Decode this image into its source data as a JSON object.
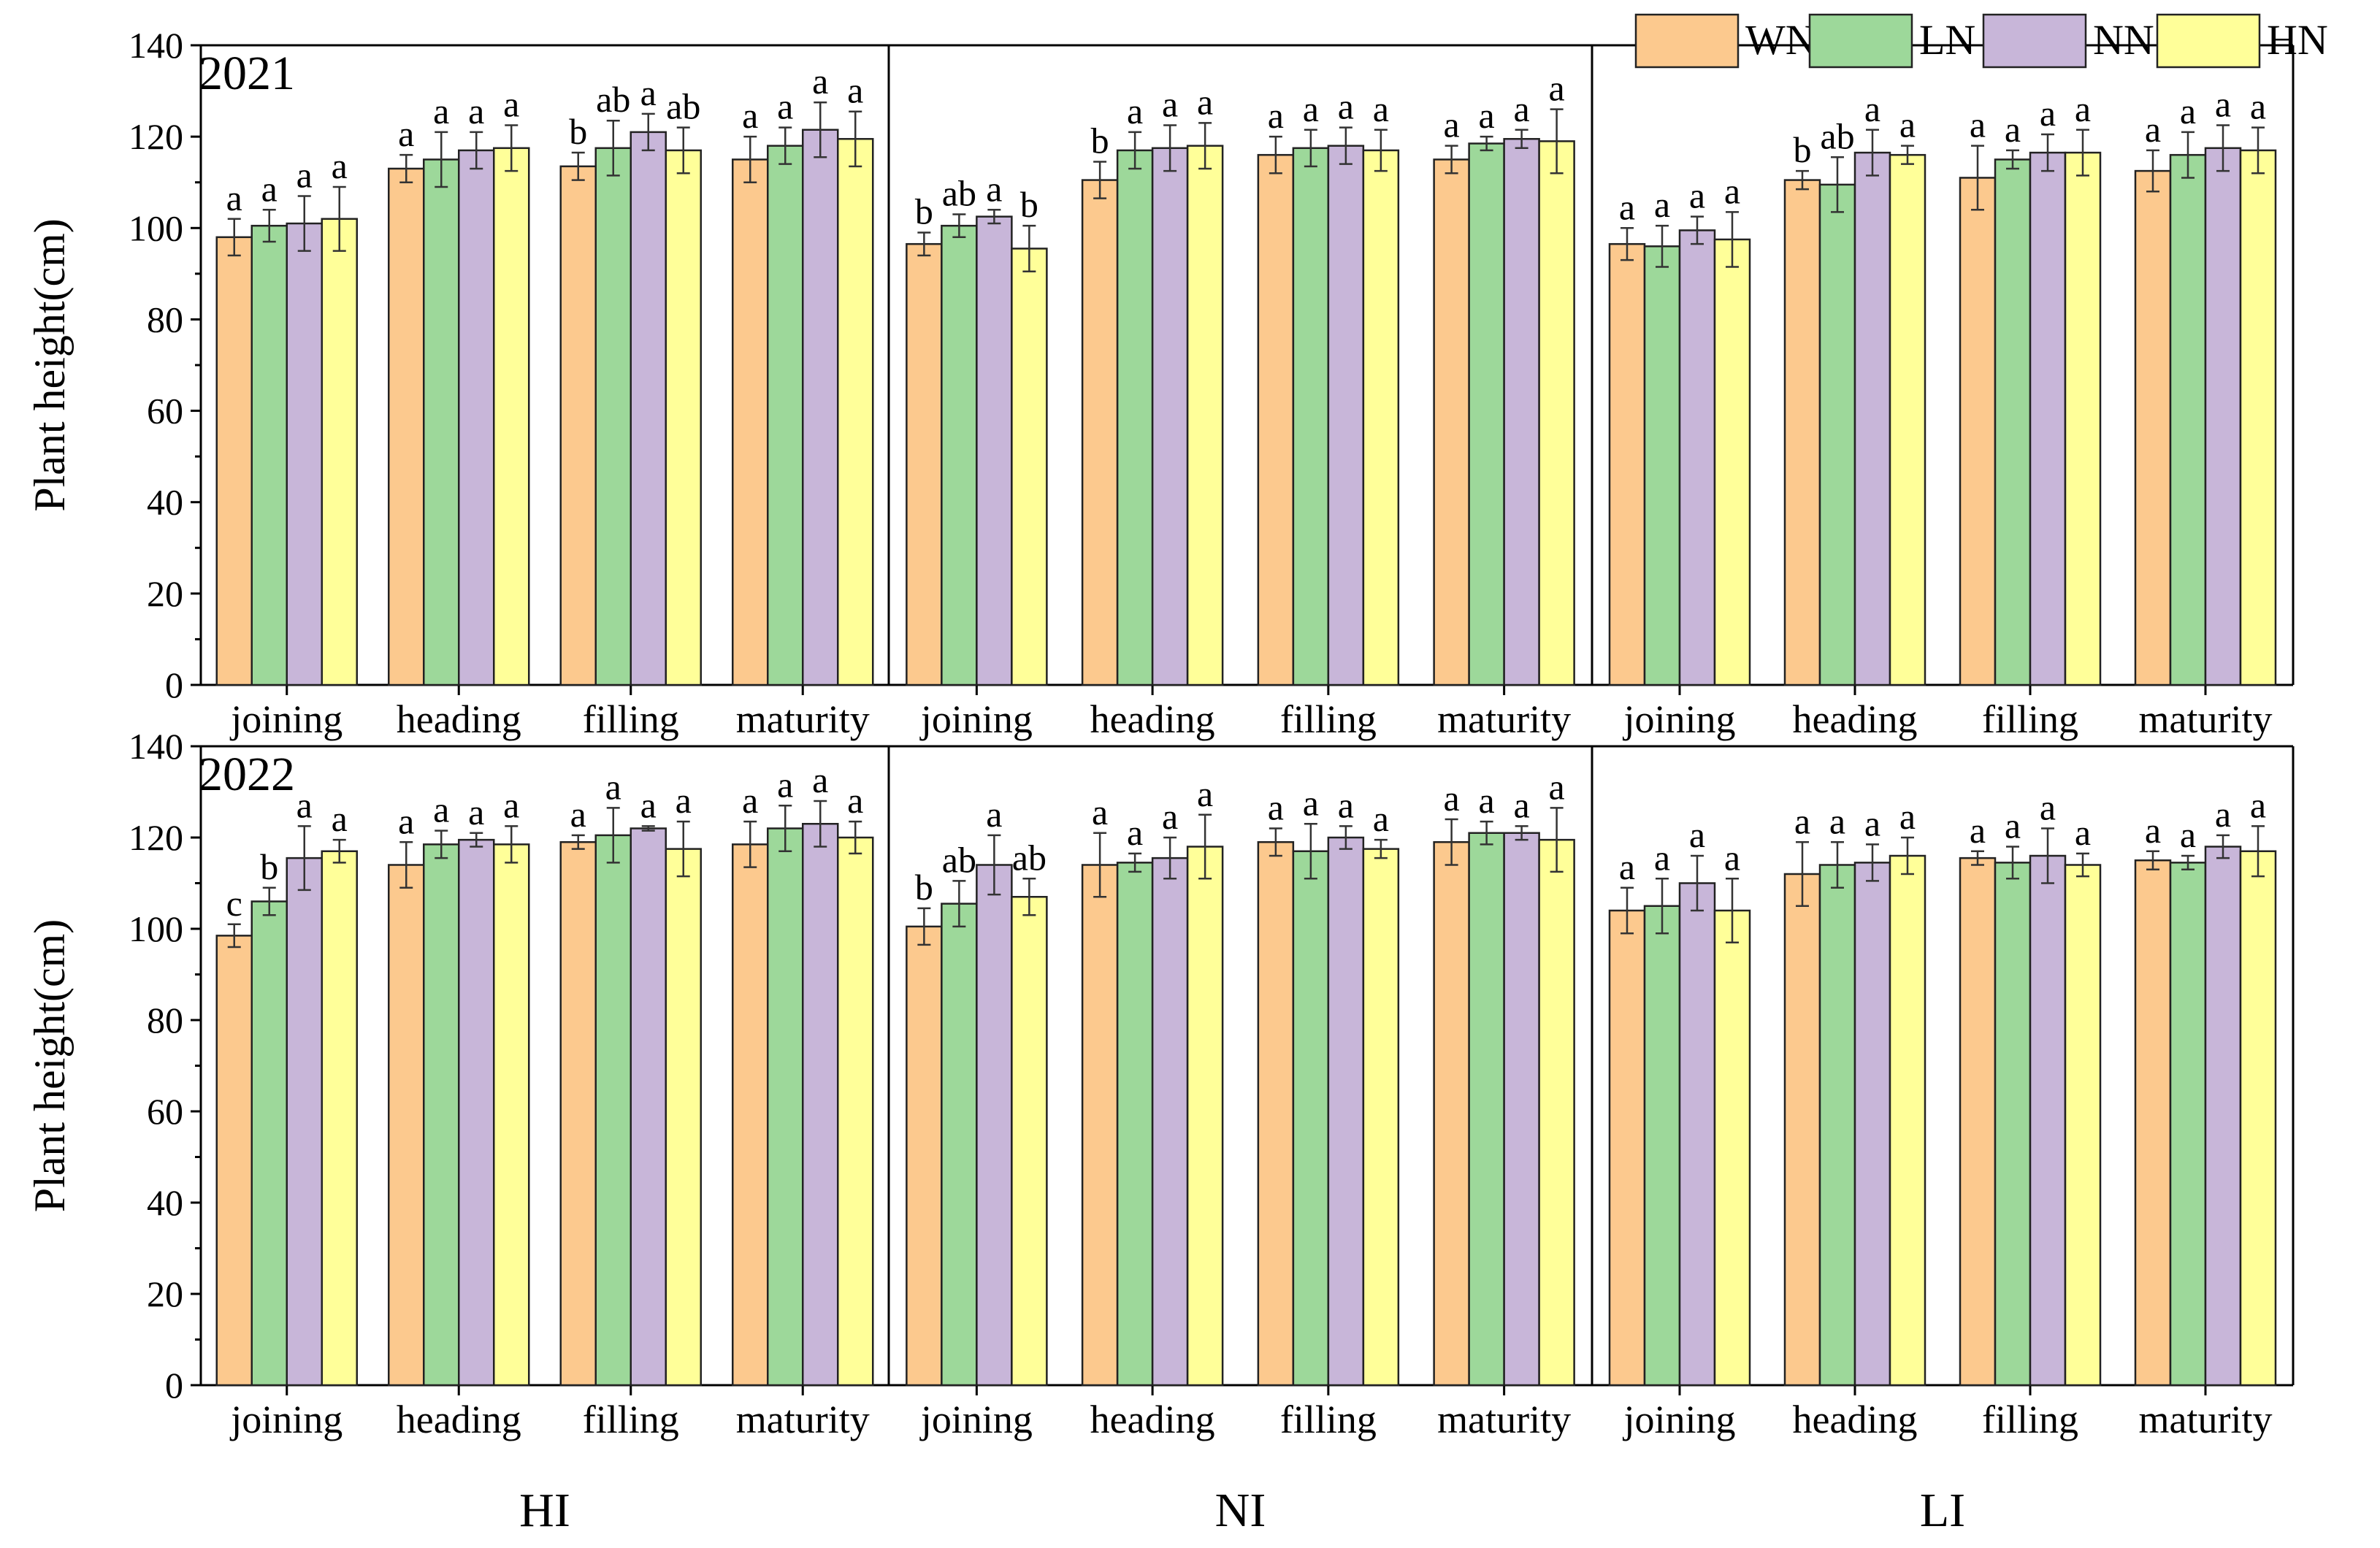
{
  "chart_data": {
    "type": "bar",
    "ylabel": "Plant height(cm)",
    "ylim": [
      0,
      140
    ],
    "yticks": [
      "0",
      "20",
      "40",
      "60",
      "80",
      "100",
      "120",
      "140"
    ],
    "stages": [
      "joining",
      "heading",
      "filling",
      "maturity"
    ],
    "treatments": [
      "HI",
      "NI",
      "LI"
    ],
    "years": [
      "2021",
      "2022"
    ],
    "legend": {
      "position": "top-right",
      "items": [
        {
          "name": "WN",
          "color": "#FCC98E"
        },
        {
          "name": "LN",
          "color": "#9DD89A"
        },
        {
          "name": "NN",
          "color": "#C8B6D9"
        },
        {
          "name": "HN",
          "color": "#FFFF99"
        }
      ]
    },
    "panels": [
      {
        "year": "2021",
        "treatment": "HI",
        "groups": [
          {
            "stage": "joining",
            "values": [
              98,
              100.5,
              101,
              102
            ],
            "errors": [
              4,
              3.5,
              6,
              7
            ],
            "letters": [
              "a",
              "a",
              "a",
              "a"
            ]
          },
          {
            "stage": "heading",
            "values": [
              113,
              115,
              117,
              117.5
            ],
            "errors": [
              3,
              6,
              4,
              5
            ],
            "letters": [
              "a",
              "a",
              "a",
              "a"
            ]
          },
          {
            "stage": "filling",
            "values": [
              113.5,
              117.5,
              121,
              117
            ],
            "errors": [
              3,
              6,
              4,
              5
            ],
            "letters": [
              "b",
              "ab",
              "a",
              "ab"
            ]
          },
          {
            "stage": "maturity",
            "values": [
              115,
              118,
              121.5,
              119.5
            ],
            "errors": [
              5,
              4,
              6,
              6
            ],
            "letters": [
              "a",
              "a",
              "a",
              "a"
            ]
          }
        ]
      },
      {
        "year": "2021",
        "treatment": "NI",
        "groups": [
          {
            "stage": "joining",
            "values": [
              96.5,
              100.5,
              102.5,
              95.5
            ],
            "errors": [
              2.5,
              2.5,
              1.5,
              5
            ],
            "letters": [
              "b",
              "ab",
              "a",
              "b"
            ]
          },
          {
            "stage": "heading",
            "values": [
              110.5,
              117,
              117.5,
              118
            ],
            "errors": [
              4,
              4,
              5,
              5
            ],
            "letters": [
              "b",
              "a",
              "a",
              "a"
            ]
          },
          {
            "stage": "filling",
            "values": [
              116,
              117.5,
              118,
              117
            ],
            "errors": [
              4,
              4,
              4,
              4.5
            ],
            "letters": [
              "a",
              "a",
              "a",
              "a"
            ]
          },
          {
            "stage": "maturity",
            "values": [
              115,
              118.5,
              119.5,
              119
            ],
            "errors": [
              3,
              1.5,
              2,
              7
            ],
            "letters": [
              "a",
              "a",
              "a",
              "a"
            ]
          }
        ]
      },
      {
        "year": "2021",
        "treatment": "LI",
        "groups": [
          {
            "stage": "joining",
            "values": [
              96.5,
              96,
              99.5,
              97.5
            ],
            "errors": [
              3.5,
              4.5,
              3,
              6
            ],
            "letters": [
              "a",
              "a",
              "a",
              "a"
            ]
          },
          {
            "stage": "heading",
            "values": [
              110.5,
              109.5,
              116.5,
              116
            ],
            "errors": [
              2,
              6,
              5,
              2
            ],
            "letters": [
              "b",
              "ab",
              "a",
              "a"
            ]
          },
          {
            "stage": "filling",
            "values": [
              111,
              115,
              116.5,
              116.5
            ],
            "errors": [
              7,
              2,
              4,
              5
            ],
            "letters": [
              "a",
              "a",
              "a",
              "a"
            ]
          },
          {
            "stage": "maturity",
            "values": [
              112.5,
              116,
              117.5,
              117
            ],
            "errors": [
              4.5,
              5,
              5,
              5
            ],
            "letters": [
              "a",
              "a",
              "a",
              "a"
            ]
          }
        ]
      },
      {
        "year": "2022",
        "treatment": "HI",
        "groups": [
          {
            "stage": "joining",
            "values": [
              98.5,
              106,
              115.5,
              117
            ],
            "errors": [
              2.5,
              3,
              7,
              2.5
            ],
            "letters": [
              "c",
              "b",
              "a",
              "a"
            ]
          },
          {
            "stage": "heading",
            "values": [
              114,
              118.5,
              119.5,
              118.5
            ],
            "errors": [
              5,
              3,
              1.5,
              4
            ],
            "letters": [
              "a",
              "a",
              "a",
              "a"
            ]
          },
          {
            "stage": "filling",
            "values": [
              119,
              120.5,
              122,
              117.5
            ],
            "errors": [
              1.5,
              6,
              0.5,
              6
            ],
            "letters": [
              "a",
              "a",
              "a",
              "a"
            ]
          },
          {
            "stage": "maturity",
            "values": [
              118.5,
              122,
              123,
              120
            ],
            "errors": [
              5,
              5,
              5,
              3.5
            ],
            "letters": [
              "a",
              "a",
              "a",
              "a"
            ]
          }
        ]
      },
      {
        "year": "2022",
        "treatment": "NI",
        "groups": [
          {
            "stage": "joining",
            "values": [
              100.5,
              105.5,
              114,
              107
            ],
            "errors": [
              4,
              5,
              6.5,
              4
            ],
            "letters": [
              "b",
              "ab",
              "a",
              "ab"
            ]
          },
          {
            "stage": "heading",
            "values": [
              114,
              114.5,
              115.5,
              118
            ],
            "errors": [
              7,
              2,
              4.5,
              7
            ],
            "letters": [
              "a",
              "a",
              "a",
              "a"
            ]
          },
          {
            "stage": "filling",
            "values": [
              119,
              117,
              120,
              117.5
            ],
            "errors": [
              3,
              6,
              2.5,
              2
            ],
            "letters": [
              "a",
              "a",
              "a",
              "a"
            ]
          },
          {
            "stage": "maturity",
            "values": [
              119,
              121,
              121,
              119.5
            ],
            "errors": [
              5,
              2.5,
              1.5,
              7
            ],
            "letters": [
              "a",
              "a",
              "a",
              "a"
            ]
          }
        ]
      },
      {
        "year": "2022",
        "treatment": "LI",
        "groups": [
          {
            "stage": "joining",
            "values": [
              104,
              105,
              110,
              104
            ],
            "errors": [
              5,
              6,
              6,
              7
            ],
            "letters": [
              "a",
              "a",
              "a",
              "a"
            ]
          },
          {
            "stage": "heading",
            "values": [
              112,
              114,
              114.5,
              116
            ],
            "errors": [
              7,
              5,
              4,
              4
            ],
            "letters": [
              "a",
              "a",
              "a",
              "a"
            ]
          },
          {
            "stage": "filling",
            "values": [
              115.5,
              114.5,
              116,
              114
            ],
            "errors": [
              1.5,
              3.5,
              6,
              2.5
            ],
            "letters": [
              "a",
              "a",
              "a",
              "a"
            ]
          },
          {
            "stage": "maturity",
            "values": [
              115,
              114.5,
              118,
              117
            ],
            "errors": [
              2,
              1.5,
              2.5,
              5.5
            ],
            "letters": [
              "a",
              "a",
              "a",
              "a"
            ]
          }
        ]
      }
    ]
  }
}
